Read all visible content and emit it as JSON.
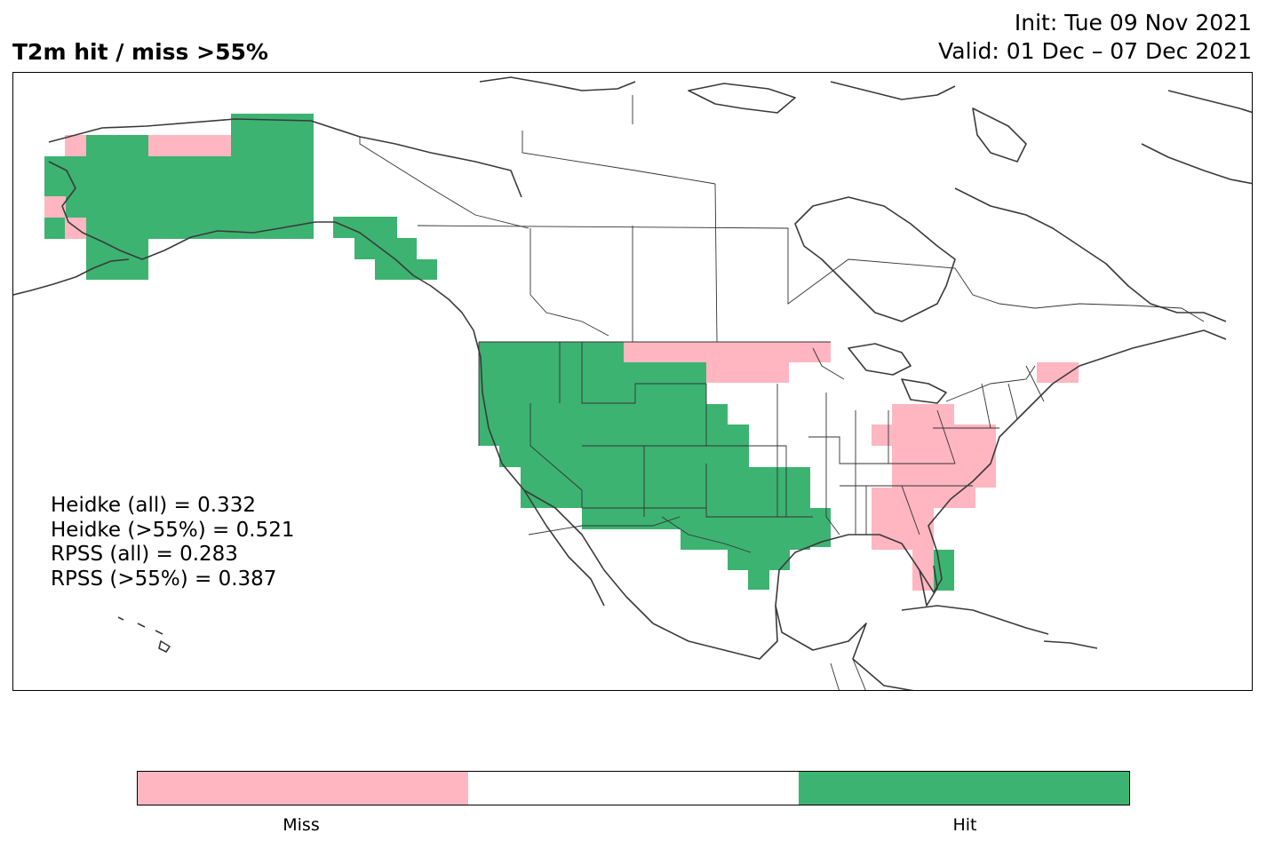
{
  "title": {
    "left": "T2m hit / miss  >55%",
    "init": "Init: Tue 09 Nov 2021",
    "valid": "Valid: 01 Dec – 07 Dec 2021"
  },
  "scores": [
    "Heidke (all) = 0.332",
    "Heidke (>55%) = 0.521",
    "RPSS (all) = 0.283",
    "RPSS (>55%) = 0.387"
  ],
  "legend": {
    "colors": {
      "miss": "#ffb6c1",
      "neutral": "#ffffff",
      "hit": "#3cb371"
    },
    "miss_label": "Miss",
    "hit_label": "Hit"
  },
  "map": {
    "coastline_color": "#3a3a3a",
    "region_outcomes": [
      {
        "region": "Alaska",
        "outcome": "hit"
      },
      {
        "region": "Alaska north slope",
        "outcome": "miss"
      },
      {
        "region": "Alaska western coast",
        "outcome": "miss"
      },
      {
        "region": "Alaska panhandle",
        "outcome": "hit"
      },
      {
        "region": "US West",
        "outcome": "hit"
      },
      {
        "region": "US Southern Plains",
        "outcome": "hit"
      },
      {
        "region": "US Northern Plains",
        "outcome": "miss"
      },
      {
        "region": "US Southeast",
        "outcome": "miss"
      },
      {
        "region": "US Mid-Atlantic",
        "outcome": "miss"
      },
      {
        "region": "Florida south",
        "outcome": "hit"
      },
      {
        "region": "New England north",
        "outcome": "miss"
      }
    ]
  }
}
